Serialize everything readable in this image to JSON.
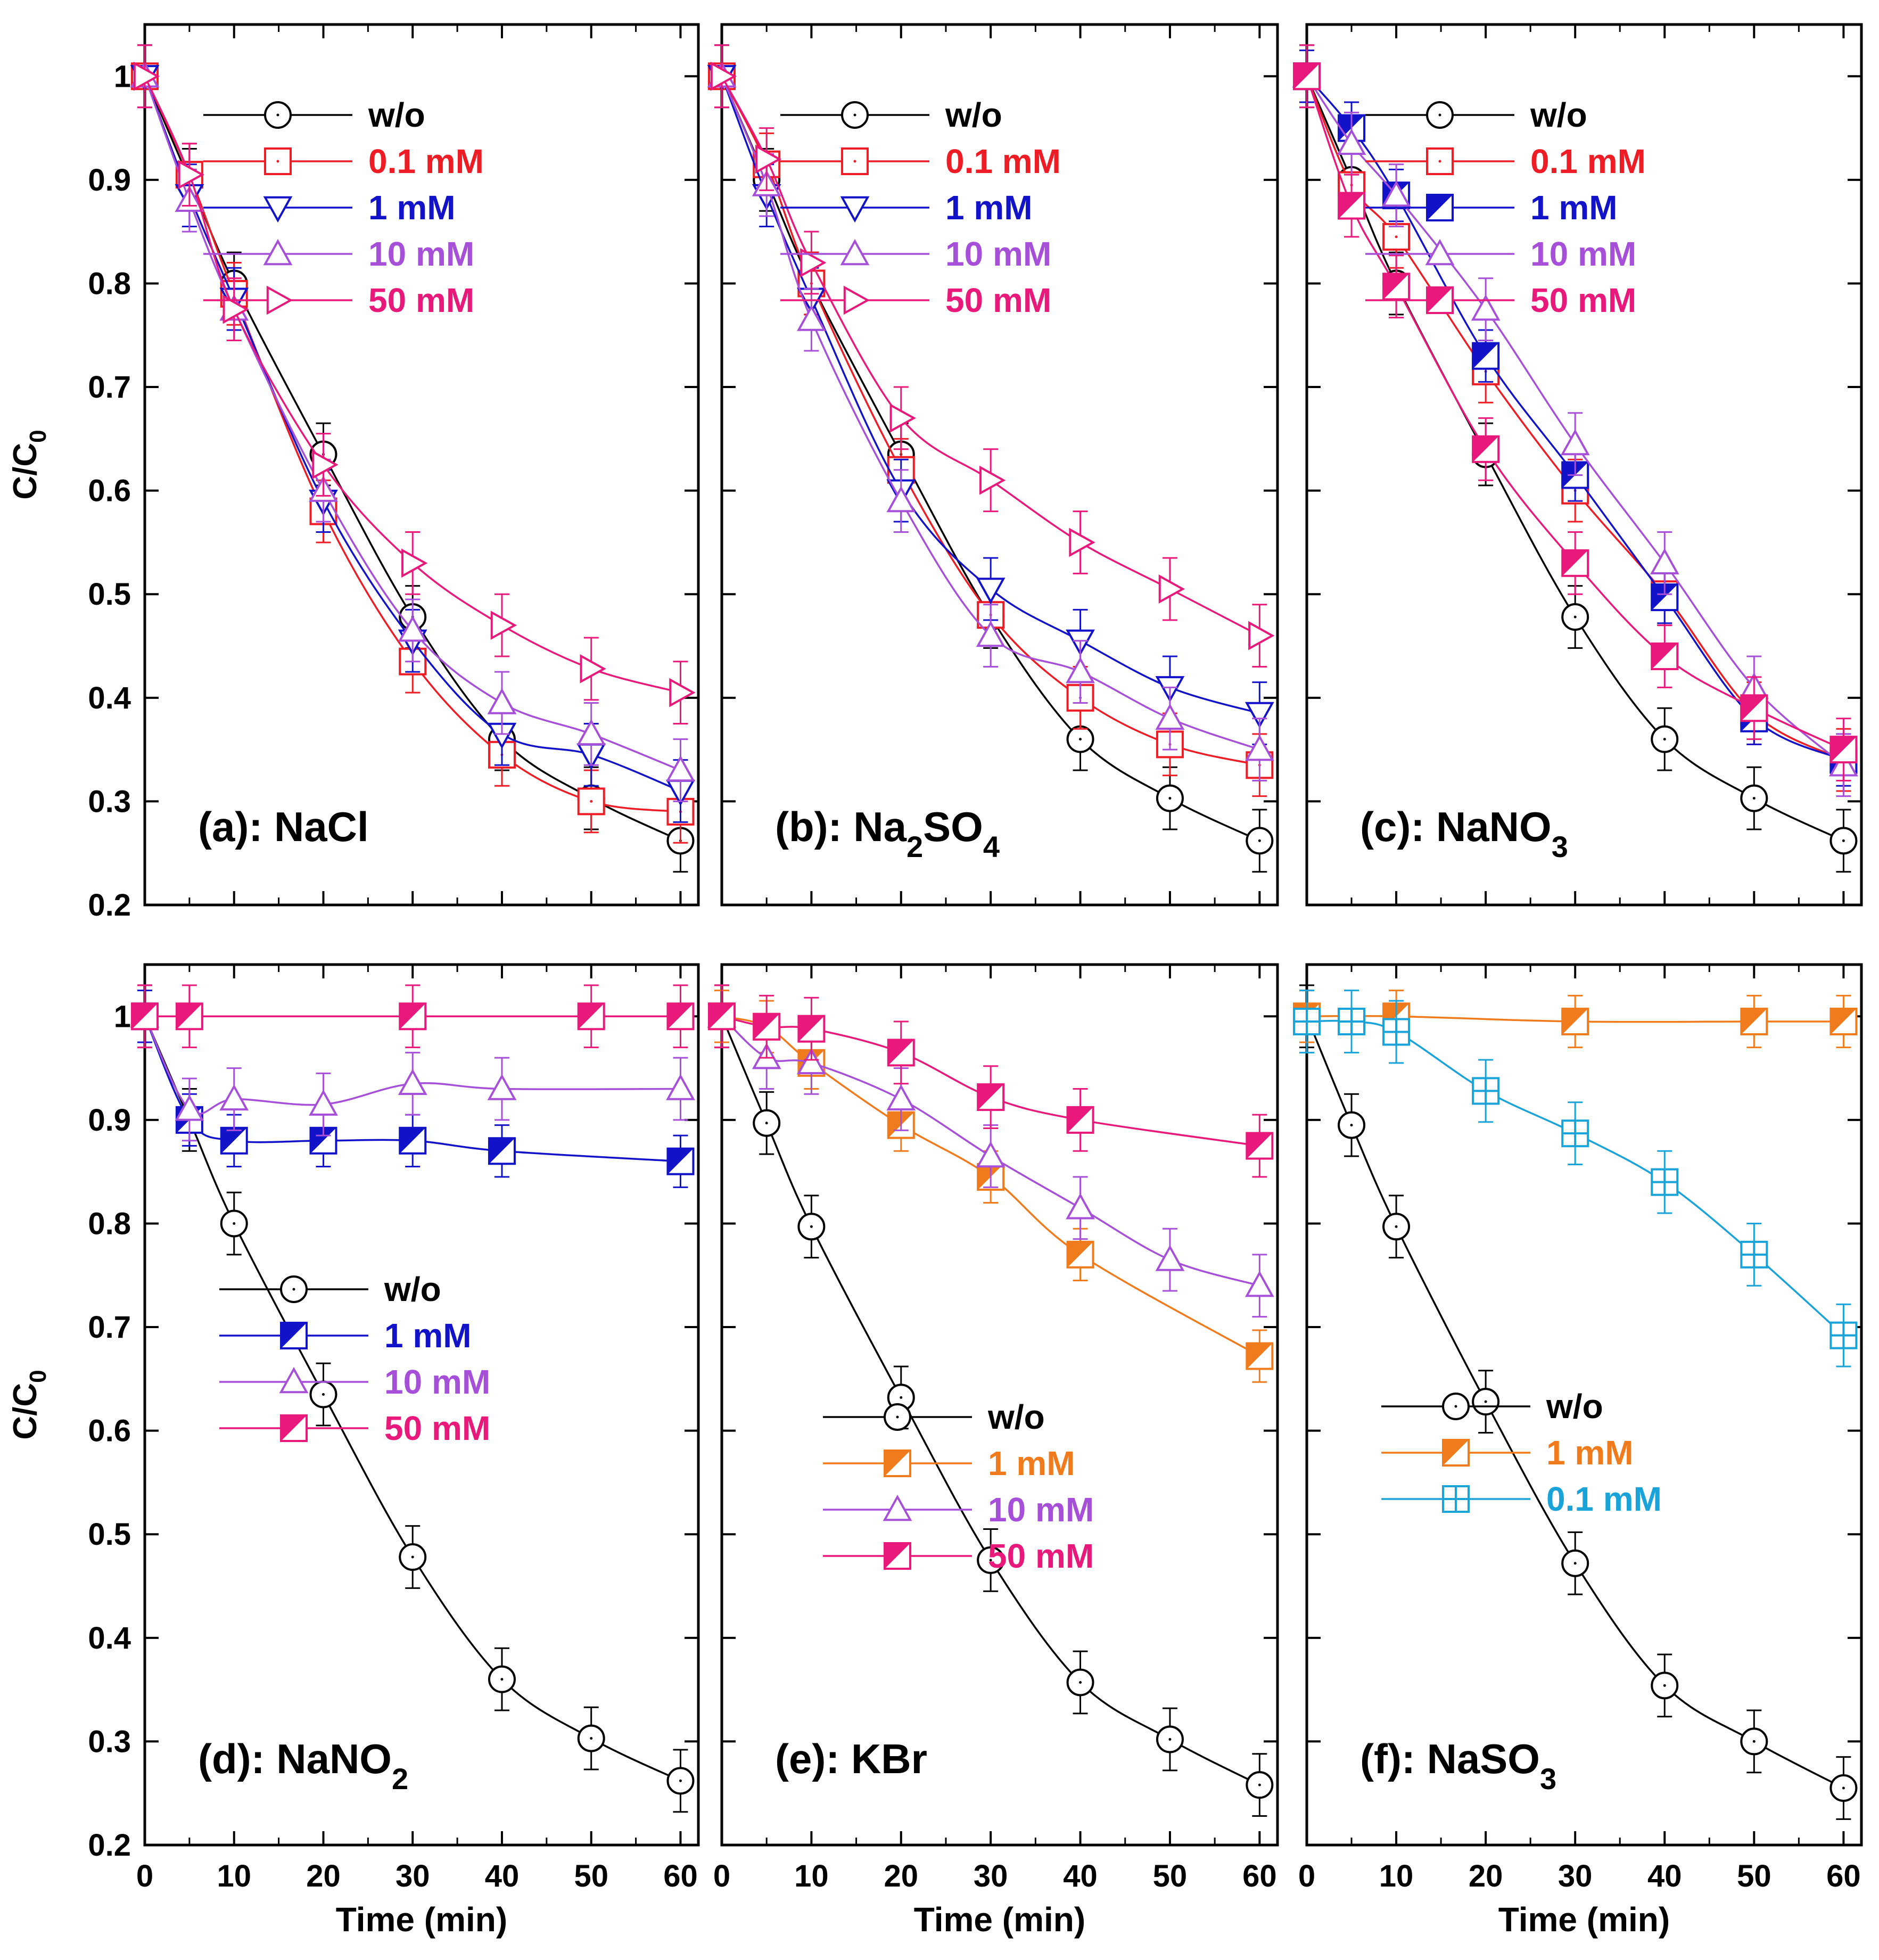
{
  "figure": {
    "y_axis_label_main": "C/C",
    "y_axis_label_sub": "0",
    "x_axis_label": "Time (min)"
  },
  "colors": {
    "wo": "#000000",
    "c0_1": "#ee1c25",
    "c1": "#1212c8",
    "c10": "#a64fd8",
    "c50": "#e8197a",
    "orange": "#f07b1c",
    "cyan": "#1aa3d8"
  },
  "chart_data": [
    {
      "panel": "a",
      "type": "line",
      "label": "(a): NaCl",
      "label_main": "(a): NaCl",
      "label_sub": "",
      "label_tail": "",
      "xlabel": "",
      "ylabel": "C/C0",
      "xlim": [
        0,
        62
      ],
      "ylim": [
        0.2,
        1.05
      ],
      "x_ticks": [
        0,
        10,
        20,
        30,
        40,
        50,
        60
      ],
      "y_ticks": [
        0.2,
        0.3,
        0.4,
        0.5,
        0.6,
        0.7,
        0.8,
        0.9,
        1
      ],
      "y_tick_labels": [
        "0.2",
        "0.3",
        "0.4",
        "0.5",
        "0.6",
        "0.7",
        "0.8",
        "0.9",
        "1"
      ],
      "show_y_labels": true,
      "show_x_labels": false,
      "legend_position": "top-right",
      "series": [
        {
          "name": "w/o",
          "marker": "circle",
          "color_key": "wo",
          "x": [
            0,
            5,
            10,
            20,
            30,
            40,
            50,
            60
          ],
          "y": [
            1,
            0.9,
            0.8,
            0.635,
            0.478,
            0.36,
            0.303,
            0.262
          ],
          "err": 0.03
        },
        {
          "name": "0.1 mM",
          "marker": "square",
          "color_key": "c0_1",
          "x": [
            0,
            5,
            10,
            20,
            30,
            40,
            50,
            60
          ],
          "y": [
            1,
            0.905,
            0.79,
            0.58,
            0.435,
            0.345,
            0.3,
            0.29
          ],
          "err": 0.03
        },
        {
          "name": "1 mM",
          "marker": "tri-down",
          "color_key": "c1",
          "x": [
            0,
            5,
            10,
            20,
            30,
            40,
            50,
            60
          ],
          "y": [
            1,
            0.885,
            0.785,
            0.59,
            0.455,
            0.365,
            0.345,
            0.31
          ],
          "err": 0.03
        },
        {
          "name": "10 mM",
          "marker": "tri-up",
          "color_key": "c10",
          "x": [
            0,
            5,
            10,
            20,
            30,
            40,
            50,
            60
          ],
          "y": [
            1,
            0.88,
            0.775,
            0.6,
            0.465,
            0.395,
            0.365,
            0.33
          ],
          "err": 0.03
        },
        {
          "name": "50 mM",
          "marker": "tri-right",
          "color_key": "c50",
          "x": [
            0,
            5,
            10,
            20,
            30,
            40,
            50,
            60
          ],
          "y": [
            1,
            0.905,
            0.775,
            0.625,
            0.53,
            0.47,
            0.428,
            0.405
          ],
          "err": 0.03
        }
      ]
    },
    {
      "panel": "b",
      "type": "line",
      "label": "(b): Na2SO4",
      "label_main": "(b): Na",
      "label_sub": "2",
      "label_tail": "SO",
      "label_sub2": "4",
      "xlabel": "",
      "ylabel": "",
      "xlim": [
        0,
        62
      ],
      "ylim": [
        0.2,
        1.05
      ],
      "x_ticks": [
        0,
        10,
        20,
        30,
        40,
        50,
        60
      ],
      "y_ticks": [
        0.2,
        0.3,
        0.4,
        0.5,
        0.6,
        0.7,
        0.8,
        0.9,
        1
      ],
      "show_y_labels": false,
      "show_x_labels": false,
      "legend_position": "top-right",
      "series": [
        {
          "name": "w/o",
          "marker": "circle",
          "color_key": "wo",
          "x": [
            0,
            5,
            10,
            20,
            30,
            40,
            50,
            60
          ],
          "y": [
            1,
            0.9,
            0.8,
            0.635,
            0.478,
            0.36,
            0.303,
            0.262
          ],
          "err": 0.03
        },
        {
          "name": "0.1 mM",
          "marker": "square",
          "color_key": "c0_1",
          "x": [
            0,
            5,
            10,
            20,
            30,
            40,
            50,
            60
          ],
          "y": [
            1,
            0.915,
            0.8,
            0.62,
            0.48,
            0.4,
            0.355,
            0.335
          ],
          "err": 0.03
        },
        {
          "name": "1 mM",
          "marker": "tri-down",
          "color_key": "c1",
          "x": [
            0,
            5,
            10,
            20,
            30,
            40,
            50,
            60
          ],
          "y": [
            1,
            0.885,
            0.785,
            0.6,
            0.505,
            0.455,
            0.41,
            0.385
          ],
          "err": 0.03
        },
        {
          "name": "10 mM",
          "marker": "tri-up",
          "color_key": "c10",
          "x": [
            0,
            5,
            10,
            20,
            30,
            40,
            50,
            60
          ],
          "y": [
            1,
            0.895,
            0.765,
            0.59,
            0.46,
            0.425,
            0.38,
            0.35
          ],
          "err": 0.03
        },
        {
          "name": "50 mM",
          "marker": "tri-right",
          "color_key": "c50",
          "x": [
            0,
            5,
            10,
            20,
            30,
            40,
            50,
            60
          ],
          "y": [
            1,
            0.92,
            0.82,
            0.67,
            0.61,
            0.55,
            0.505,
            0.46
          ],
          "err": 0.03
        }
      ]
    },
    {
      "panel": "c",
      "type": "line",
      "label": "(c): NaNO3",
      "label_main": "(c): NaNO",
      "label_sub": "3",
      "label_tail": "",
      "xlabel": "",
      "ylabel": "",
      "xlim": [
        0,
        62
      ],
      "ylim": [
        0.2,
        1.05
      ],
      "x_ticks": [
        0,
        10,
        20,
        30,
        40,
        50,
        60
      ],
      "y_ticks": [
        0.2,
        0.3,
        0.4,
        0.5,
        0.6,
        0.7,
        0.8,
        0.9,
        1
      ],
      "show_y_labels": false,
      "show_x_labels": false,
      "legend_position": "top-right",
      "series": [
        {
          "name": "w/o",
          "marker": "circle",
          "color_key": "wo",
          "x": [
            0,
            5,
            10,
            20,
            30,
            40,
            50,
            60
          ],
          "y": [
            1,
            0.9,
            0.8,
            0.635,
            0.478,
            0.36,
            0.303,
            0.262
          ],
          "err": 0.03
        },
        {
          "name": "0.1 mM",
          "marker": "square",
          "color_key": "c0_1",
          "x": [
            0,
            5,
            10,
            20,
            30,
            40,
            50,
            60
          ],
          "y": [
            1,
            0.895,
            0.845,
            0.715,
            0.6,
            0.5,
            0.385,
            0.34
          ],
          "err": 0.03
        },
        {
          "name": "1 mM",
          "marker": "half-square",
          "color_key": "c1",
          "x": [
            0,
            5,
            10,
            20,
            30,
            40,
            50,
            60
          ],
          "y": [
            1,
            0.95,
            0.885,
            0.73,
            0.615,
            0.497,
            0.38,
            0.34
          ],
          "err": 0.025
        },
        {
          "name": "10 mM",
          "marker": "tri-up",
          "color_key": "c10",
          "x": [
            0,
            5,
            10,
            20,
            30,
            40,
            50,
            60
          ],
          "y": [
            1,
            0.935,
            0.885,
            0.775,
            0.645,
            0.53,
            0.41,
            0.335
          ],
          "err": 0.03
        },
        {
          "name": "50 mM",
          "marker": "half-square",
          "color_key": "c50",
          "x": [
            0,
            5,
            10,
            20,
            30,
            40,
            50,
            60
          ],
          "y": [
            1,
            0.875,
            0.797,
            0.64,
            0.53,
            0.44,
            0.39,
            0.35
          ],
          "err": 0.03
        }
      ]
    },
    {
      "panel": "d",
      "type": "line",
      "label": "(d): NaNO2",
      "label_main": "(d): NaNO",
      "label_sub": "2",
      "label_tail": "",
      "xlabel": "Time (min)",
      "ylabel": "C/C0",
      "xlim": [
        0,
        62
      ],
      "ylim": [
        0.2,
        1.05
      ],
      "x_ticks": [
        0,
        10,
        20,
        30,
        40,
        50,
        60
      ],
      "x_tick_labels": [
        "0",
        "10",
        "20",
        "30",
        "40",
        "50",
        "60"
      ],
      "y_ticks": [
        0.2,
        0.3,
        0.4,
        0.5,
        0.6,
        0.7,
        0.8,
        0.9,
        1
      ],
      "y_tick_labels": [
        "0.2",
        "0.3",
        "0.4",
        "0.5",
        "0.6",
        "0.7",
        "0.8",
        "0.9",
        "1"
      ],
      "show_y_labels": true,
      "show_x_labels": true,
      "legend_position": "center-right",
      "series": [
        {
          "name": "w/o",
          "marker": "circle",
          "color_key": "wo",
          "x": [
            0,
            5,
            10,
            20,
            30,
            40,
            50,
            60
          ],
          "y": [
            1,
            0.9,
            0.8,
            0.635,
            0.478,
            0.36,
            0.303,
            0.262
          ],
          "err": 0.03
        },
        {
          "name": "1 mM",
          "marker": "half-square",
          "color_key": "c1",
          "x": [
            0,
            5,
            10,
            20,
            30,
            40,
            50,
            60
          ],
          "y": [
            1,
            0.9,
            0.88,
            0.88,
            0.88,
            0.87,
            null,
            0.86
          ],
          "err": 0.025
        },
        {
          "name": "10 mM",
          "marker": "tri-up",
          "color_key": "c10",
          "x": [
            0,
            5,
            10,
            20,
            30,
            40,
            50,
            60
          ],
          "y": [
            1,
            0.91,
            0.92,
            0.915,
            0.935,
            0.93,
            null,
            0.93
          ],
          "err": 0.03
        },
        {
          "name": "50 mM",
          "marker": "half-square",
          "color_key": "c50",
          "x": [
            0,
            5,
            10,
            20,
            30,
            40,
            50,
            60
          ],
          "y": [
            1,
            1,
            null,
            null,
            1,
            null,
            1,
            1
          ],
          "err": 0.03
        }
      ]
    },
    {
      "panel": "e",
      "type": "line",
      "label": "(e): KBr",
      "label_main": "(e): KBr",
      "label_sub": "",
      "label_tail": "",
      "xlabel": "Time (min)",
      "ylabel": "",
      "xlim": [
        0,
        62
      ],
      "ylim": [
        0.2,
        1.05
      ],
      "x_ticks": [
        0,
        10,
        20,
        30,
        40,
        50,
        60
      ],
      "x_tick_labels": [
        "0",
        "10",
        "20",
        "30",
        "40",
        "50",
        "60"
      ],
      "y_ticks": [
        0.2,
        0.3,
        0.4,
        0.5,
        0.6,
        0.7,
        0.8,
        0.9,
        1
      ],
      "show_y_labels": false,
      "show_x_labels": true,
      "legend_position": "center-right",
      "series": [
        {
          "name": "w/o",
          "marker": "circle",
          "color_key": "wo",
          "x": [
            0,
            5,
            10,
            20,
            30,
            40,
            50,
            60
          ],
          "y": [
            1,
            0.897,
            0.797,
            0.632,
            0.475,
            0.357,
            0.302,
            0.258
          ],
          "err": 0.03
        },
        {
          "name": "1 mM",
          "marker": "half-square",
          "color_key": "orange",
          "x": [
            0,
            5,
            10,
            20,
            30,
            40,
            50,
            60
          ],
          "y": [
            1,
            0.99,
            0.955,
            0.895,
            0.845,
            0.77,
            null,
            0.672
          ],
          "err": 0.025
        },
        {
          "name": "10 mM",
          "marker": "tri-up",
          "color_key": "c10",
          "x": [
            0,
            5,
            10,
            20,
            30,
            40,
            50,
            60
          ],
          "y": [
            1,
            0.96,
            0.955,
            0.92,
            0.865,
            0.815,
            0.765,
            0.74
          ],
          "err": 0.03
        },
        {
          "name": "50 mM",
          "marker": "half-square",
          "color_key": "c50",
          "x": [
            0,
            5,
            10,
            20,
            30,
            40,
            50,
            60
          ],
          "y": [
            1,
            0.99,
            0.988,
            0.965,
            0.922,
            0.9,
            null,
            0.875
          ],
          "err": 0.03
        }
      ]
    },
    {
      "panel": "f",
      "type": "line",
      "label": "(f): NaSO3",
      "label_main": "(f): NaSO",
      "label_sub": "3",
      "label_tail": "",
      "xlabel": "Time (min)",
      "ylabel": "",
      "xlim": [
        0,
        62
      ],
      "ylim": [
        0.2,
        1.05
      ],
      "x_ticks": [
        0,
        10,
        20,
        30,
        40,
        50,
        60
      ],
      "x_tick_labels": [
        "0",
        "10",
        "20",
        "30",
        "40",
        "50",
        "60"
      ],
      "y_ticks": [
        0.2,
        0.3,
        0.4,
        0.5,
        0.6,
        0.7,
        0.8,
        0.9,
        1
      ],
      "show_y_labels": false,
      "show_x_labels": true,
      "legend_position": "center-right",
      "series": [
        {
          "name": "w/o",
          "marker": "circle",
          "color_key": "wo",
          "x": [
            0,
            5,
            10,
            20,
            30,
            40,
            50,
            60
          ],
          "y": [
            1,
            0.895,
            0.797,
            0.628,
            0.472,
            0.354,
            0.3,
            0.255
          ],
          "err": 0.03
        },
        {
          "name": "1 mM",
          "marker": "half-square",
          "color_key": "orange",
          "x": [
            0,
            10,
            30,
            50,
            60
          ],
          "y": [
            1,
            1,
            0.995,
            0.995,
            0.995
          ],
          "err": 0.025
        },
        {
          "name": "0.1 mM",
          "marker": "crossed-square",
          "color_key": "cyan",
          "x": [
            0,
            5,
            10,
            20,
            30,
            40,
            50,
            60
          ],
          "y": [
            0.995,
            0.995,
            0.985,
            0.928,
            0.887,
            0.84,
            0.77,
            0.692
          ],
          "err": 0.03
        }
      ]
    }
  ]
}
